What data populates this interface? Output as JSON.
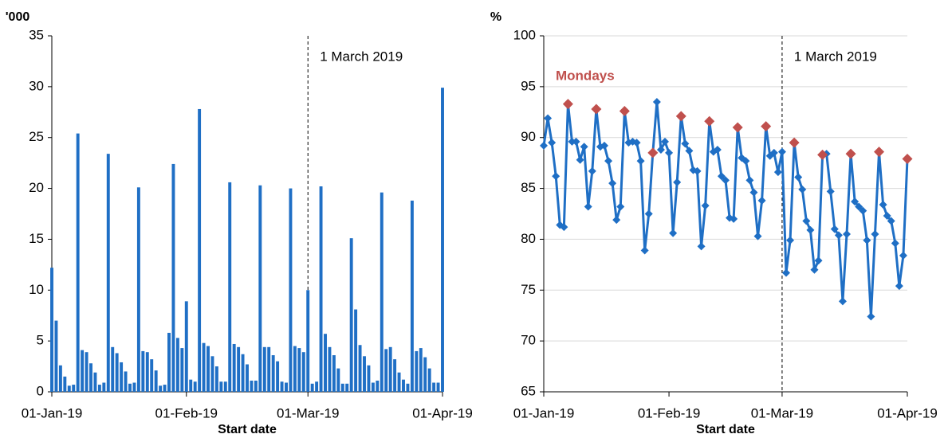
{
  "chart_data": [
    {
      "type": "bar",
      "ylabel": "'000",
      "xlabel": "Start date",
      "color": "#1f6fc5",
      "grid": false,
      "annotation": {
        "text": "1 March 2019",
        "x": "2019-03-01"
      },
      "xlim": [
        "2019-01-01",
        "2019-04-01"
      ],
      "xticks": [
        {
          "value": "2019-01-01",
          "label": "01-Jan-19"
        },
        {
          "value": "2019-02-01",
          "label": "01-Feb-19"
        },
        {
          "value": "2019-03-01",
          "label": "01-Mar-19"
        },
        {
          "value": "2019-04-01",
          "label": "01-Apr-19"
        }
      ],
      "ylim": [
        0,
        35
      ],
      "yticks": [
        0,
        5,
        10,
        15,
        20,
        25,
        30,
        35
      ],
      "x": [
        "2019-01-01",
        "2019-01-02",
        "2019-01-03",
        "2019-01-04",
        "2019-01-05",
        "2019-01-06",
        "2019-01-07",
        "2019-01-08",
        "2019-01-09",
        "2019-01-10",
        "2019-01-11",
        "2019-01-12",
        "2019-01-13",
        "2019-01-14",
        "2019-01-15",
        "2019-01-16",
        "2019-01-17",
        "2019-01-18",
        "2019-01-19",
        "2019-01-20",
        "2019-01-21",
        "2019-01-22",
        "2019-01-23",
        "2019-01-24",
        "2019-01-25",
        "2019-01-26",
        "2019-01-27",
        "2019-01-28",
        "2019-01-29",
        "2019-01-30",
        "2019-01-31",
        "2019-02-01",
        "2019-02-02",
        "2019-02-03",
        "2019-02-04",
        "2019-02-05",
        "2019-02-06",
        "2019-02-07",
        "2019-02-08",
        "2019-02-09",
        "2019-02-10",
        "2019-02-11",
        "2019-02-12",
        "2019-02-13",
        "2019-02-14",
        "2019-02-15",
        "2019-02-16",
        "2019-02-17",
        "2019-02-18",
        "2019-02-19",
        "2019-02-20",
        "2019-02-21",
        "2019-02-22",
        "2019-02-23",
        "2019-02-24",
        "2019-02-25",
        "2019-02-26",
        "2019-02-27",
        "2019-02-28",
        "2019-03-01",
        "2019-03-02",
        "2019-03-03",
        "2019-03-04",
        "2019-03-05",
        "2019-03-06",
        "2019-03-07",
        "2019-03-08",
        "2019-03-09",
        "2019-03-10",
        "2019-03-11",
        "2019-03-12",
        "2019-03-13",
        "2019-03-14",
        "2019-03-15",
        "2019-03-16",
        "2019-03-17",
        "2019-03-18",
        "2019-03-19",
        "2019-03-20",
        "2019-03-21",
        "2019-03-22",
        "2019-03-23",
        "2019-03-24",
        "2019-03-25",
        "2019-03-26",
        "2019-03-27",
        "2019-03-28",
        "2019-03-29",
        "2019-03-30",
        "2019-03-31",
        "2019-04-01"
      ],
      "values": [
        12.2,
        7.0,
        2.6,
        1.5,
        0.6,
        0.7,
        25.4,
        4.1,
        3.9,
        2.8,
        1.9,
        0.7,
        0.9,
        23.4,
        4.4,
        3.8,
        2.9,
        2.0,
        0.8,
        0.9,
        20.1,
        4.0,
        3.9,
        3.2,
        2.1,
        0.6,
        0.7,
        5.8,
        22.4,
        5.3,
        4.3,
        8.9,
        1.2,
        1.0,
        27.8,
        4.8,
        4.5,
        3.5,
        2.5,
        1.0,
        1.0,
        20.6,
        4.7,
        4.4,
        3.7,
        2.7,
        1.1,
        1.1,
        20.3,
        4.4,
        4.4,
        3.6,
        3.0,
        1.0,
        0.9,
        20.0,
        4.5,
        4.3,
        3.9,
        10.0,
        0.8,
        1.0,
        20.2,
        5.7,
        4.4,
        3.6,
        2.3,
        0.8,
        0.8,
        15.1,
        8.1,
        4.6,
        3.5,
        2.6,
        0.9,
        1.1,
        19.6,
        4.2,
        4.4,
        3.2,
        1.9,
        1.2,
        0.8,
        18.8,
        4.0,
        4.3,
        3.4,
        2.3,
        0.9,
        0.9,
        29.9
      ]
    },
    {
      "type": "line",
      "ylabel": "%",
      "xlabel": "Start date",
      "grid": true,
      "annotation": {
        "text": "1 March 2019",
        "x": "2019-03-01"
      },
      "xlim": [
        "2019-01-01",
        "2019-04-01"
      ],
      "xticks": [
        {
          "value": "2019-01-01",
          "label": "01-Jan-19"
        },
        {
          "value": "2019-02-01",
          "label": "01-Feb-19"
        },
        {
          "value": "2019-03-01",
          "label": "01-Mar-19"
        },
        {
          "value": "2019-04-01",
          "label": "01-Apr-19"
        }
      ],
      "ylim": [
        65,
        100
      ],
      "yticks": [
        65,
        70,
        75,
        80,
        85,
        90,
        95,
        100
      ],
      "x": [
        "2019-01-01",
        "2019-01-02",
        "2019-01-03",
        "2019-01-04",
        "2019-01-05",
        "2019-01-06",
        "2019-01-07",
        "2019-01-08",
        "2019-01-09",
        "2019-01-10",
        "2019-01-11",
        "2019-01-12",
        "2019-01-13",
        "2019-01-14",
        "2019-01-15",
        "2019-01-16",
        "2019-01-17",
        "2019-01-18",
        "2019-01-19",
        "2019-01-20",
        "2019-01-21",
        "2019-01-22",
        "2019-01-23",
        "2019-01-24",
        "2019-01-25",
        "2019-01-26",
        "2019-01-27",
        "2019-01-28",
        "2019-01-29",
        "2019-01-30",
        "2019-01-31",
        "2019-02-01",
        "2019-02-02",
        "2019-02-03",
        "2019-02-04",
        "2019-02-05",
        "2019-02-06",
        "2019-02-07",
        "2019-02-08",
        "2019-02-09",
        "2019-02-10",
        "2019-02-11",
        "2019-02-12",
        "2019-02-13",
        "2019-02-14",
        "2019-02-15",
        "2019-02-16",
        "2019-02-17",
        "2019-02-18",
        "2019-02-19",
        "2019-02-20",
        "2019-02-21",
        "2019-02-22",
        "2019-02-23",
        "2019-02-24",
        "2019-02-25",
        "2019-02-26",
        "2019-02-27",
        "2019-02-28",
        "2019-03-01",
        "2019-03-02",
        "2019-03-03",
        "2019-03-04",
        "2019-03-05",
        "2019-03-06",
        "2019-03-07",
        "2019-03-08",
        "2019-03-09",
        "2019-03-10",
        "2019-03-11",
        "2019-03-12",
        "2019-03-13",
        "2019-03-14",
        "2019-03-15",
        "2019-03-16",
        "2019-03-17",
        "2019-03-18",
        "2019-03-19",
        "2019-03-20",
        "2019-03-21",
        "2019-03-22",
        "2019-03-23",
        "2019-03-24",
        "2019-03-25",
        "2019-03-26",
        "2019-03-27",
        "2019-03-28",
        "2019-03-29",
        "2019-03-30",
        "2019-03-31",
        "2019-04-01"
      ],
      "series": [
        {
          "name": null,
          "color": "#1f6fc5",
          "values": [
            89.2,
            91.9,
            89.5,
            86.2,
            81.4,
            81.2,
            93.3,
            89.6,
            89.6,
            87.8,
            89.1,
            83.2,
            86.7,
            92.8,
            89.1,
            89.2,
            87.7,
            85.5,
            81.9,
            83.2,
            92.6,
            89.5,
            89.6,
            89.5,
            87.7,
            78.9,
            82.5,
            88.5,
            93.5,
            88.8,
            89.6,
            88.5,
            80.6,
            85.6,
            92.1,
            89.4,
            88.7,
            86.8,
            86.7,
            79.3,
            83.3,
            91.6,
            88.6,
            88.8,
            86.2,
            85.8,
            82.1,
            82.0,
            91.0,
            88.0,
            87.7,
            85.8,
            84.6,
            80.3,
            83.8,
            91.1,
            88.2,
            88.5,
            86.6,
            88.6,
            76.7,
            79.9,
            89.5,
            86.1,
            84.9,
            81.8,
            80.9,
            77.0,
            77.9,
            88.3,
            88.4,
            84.7,
            81.0,
            80.4,
            73.9,
            80.5,
            88.4,
            83.7,
            83.2,
            82.8,
            79.9,
            72.4,
            80.5,
            88.6,
            83.4,
            82.3,
            81.8,
            79.6,
            75.4,
            78.4,
            87.9
          ]
        },
        {
          "name": "Mondays",
          "color": "#c0504d",
          "values": [
            null,
            null,
            null,
            null,
            null,
            null,
            93.3,
            null,
            null,
            null,
            null,
            null,
            null,
            92.8,
            null,
            null,
            null,
            null,
            null,
            null,
            92.6,
            null,
            null,
            null,
            null,
            null,
            null,
            88.5,
            null,
            null,
            null,
            null,
            null,
            null,
            92.1,
            null,
            null,
            null,
            null,
            null,
            null,
            91.6,
            null,
            null,
            null,
            null,
            null,
            null,
            91.0,
            null,
            null,
            null,
            null,
            null,
            null,
            91.1,
            null,
            null,
            null,
            null,
            null,
            null,
            89.5,
            null,
            null,
            null,
            null,
            null,
            null,
            88.3,
            null,
            null,
            null,
            null,
            null,
            null,
            88.4,
            null,
            null,
            null,
            null,
            null,
            null,
            88.6,
            null,
            null,
            null,
            null,
            null,
            null,
            87.9
          ]
        }
      ]
    }
  ]
}
